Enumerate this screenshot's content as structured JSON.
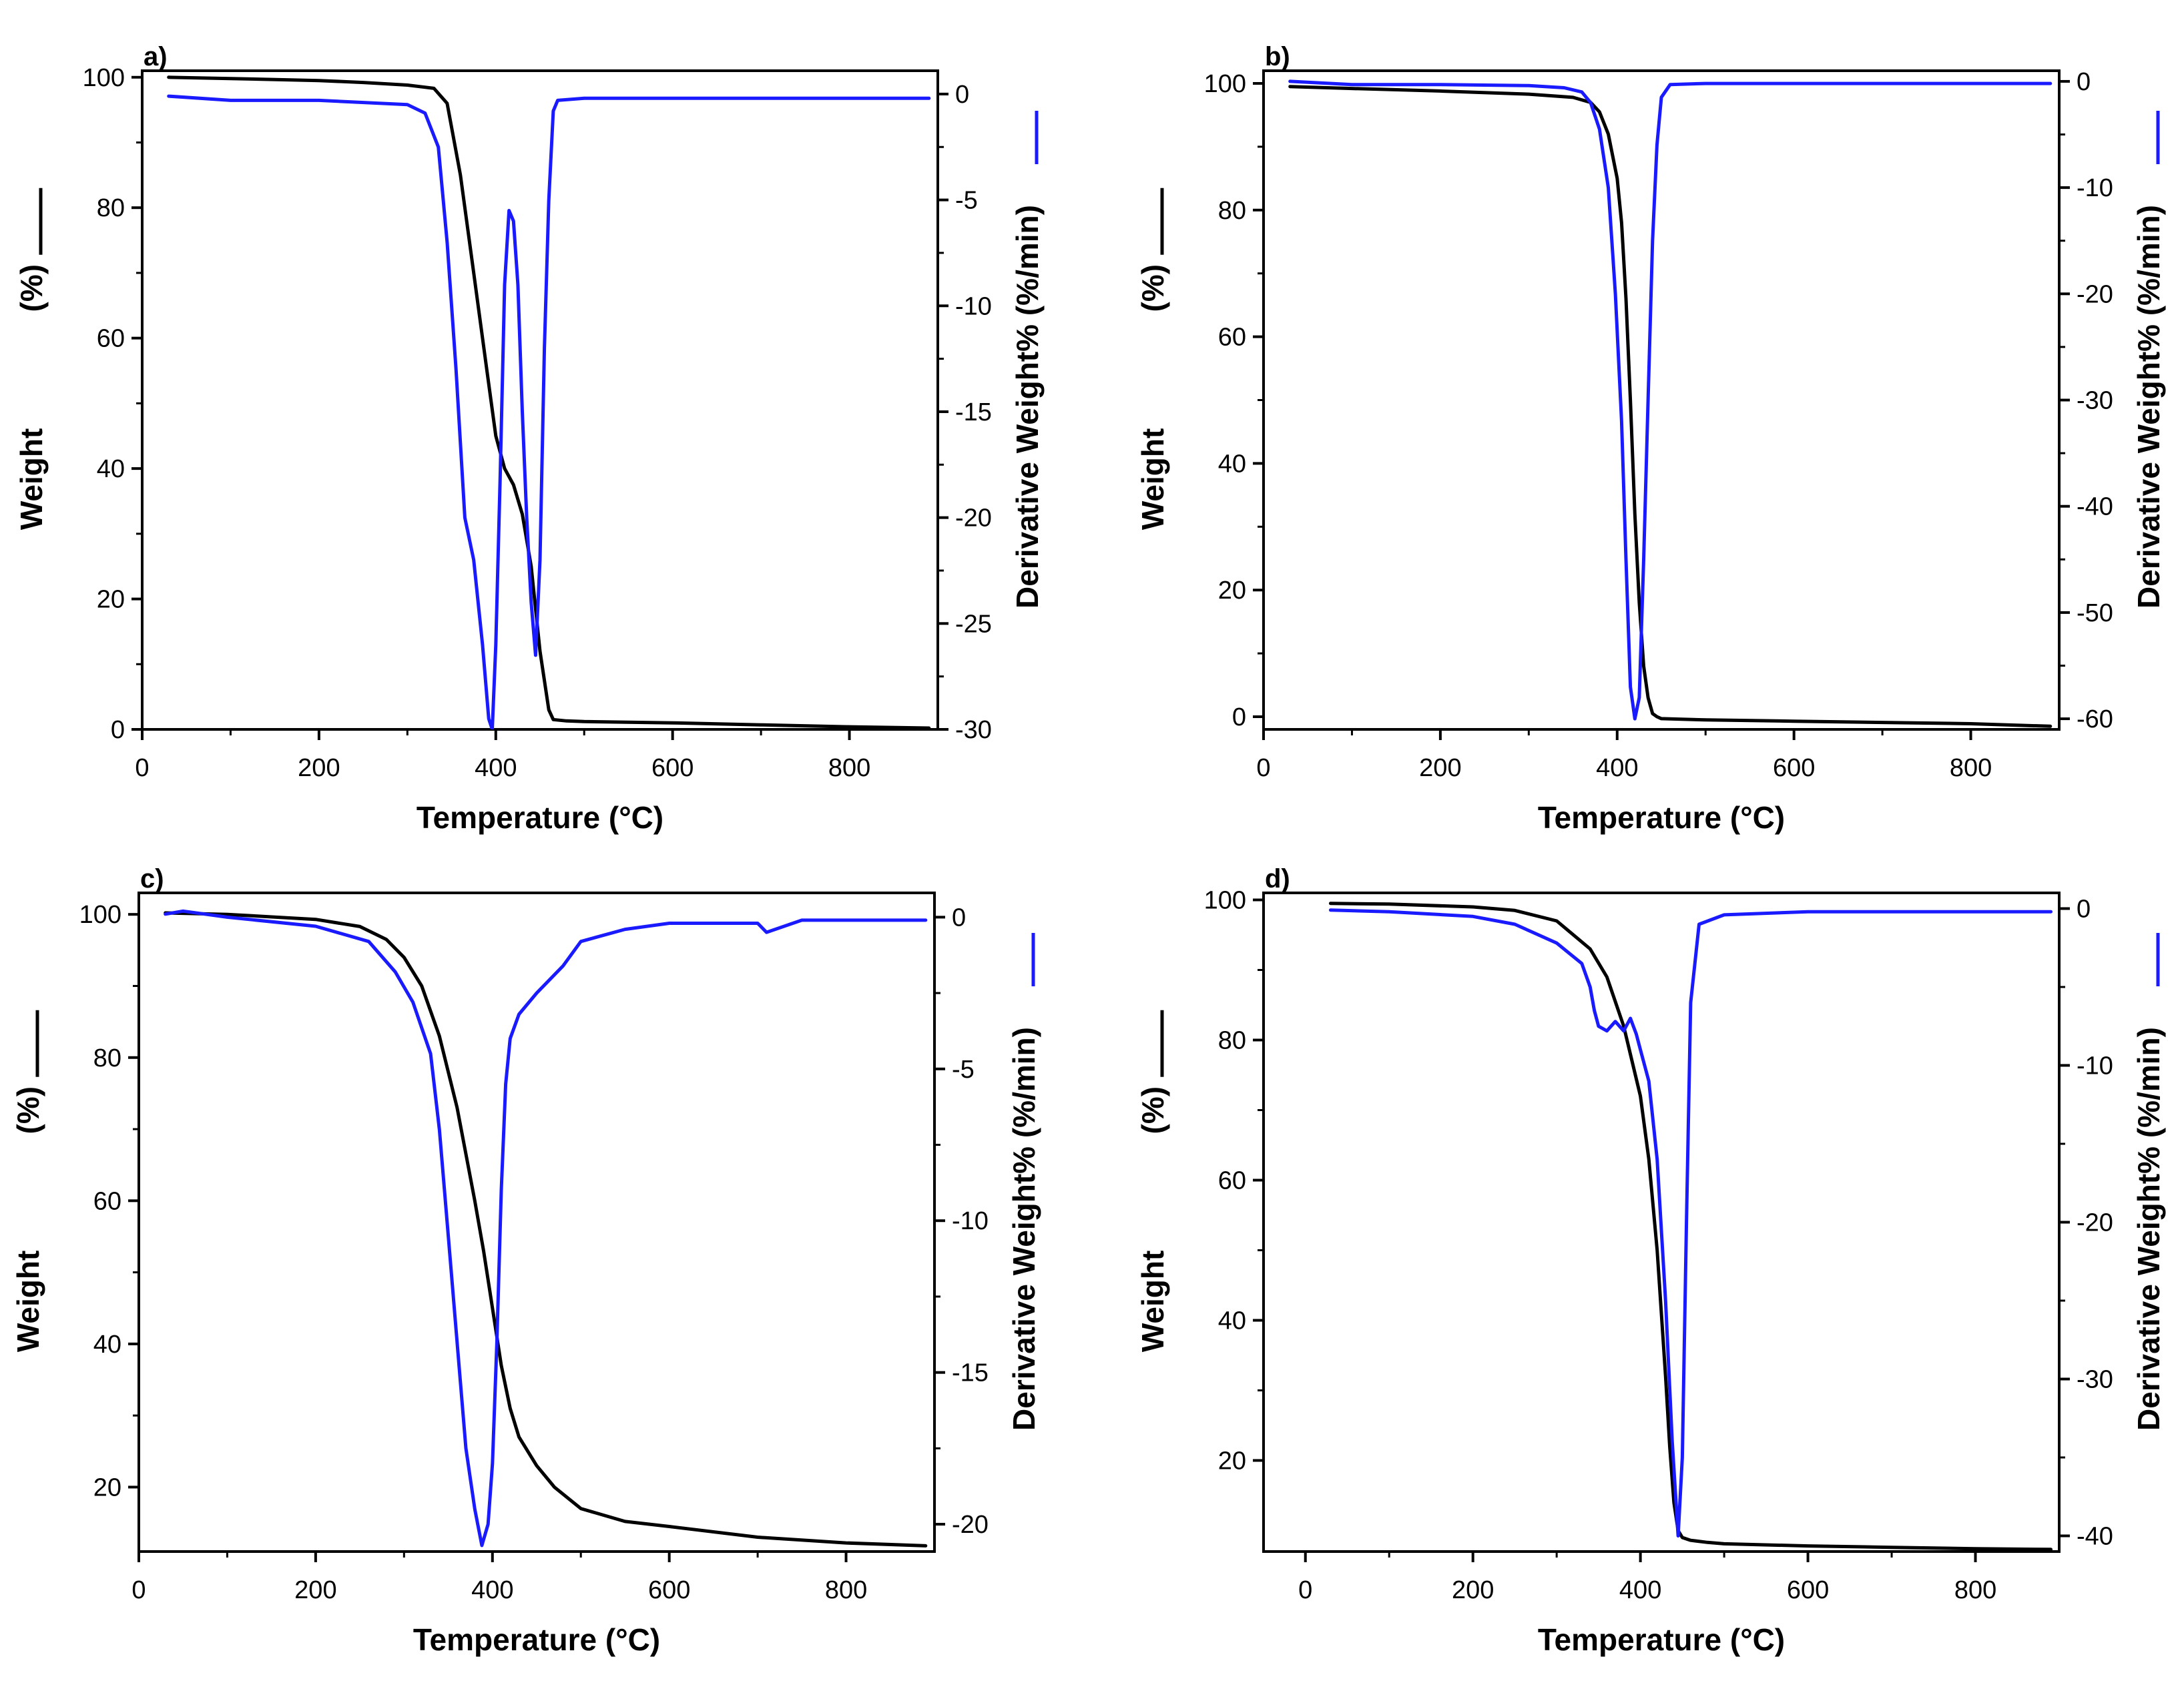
{
  "figure": {
    "colors": {
      "weight": "#000000",
      "derivative": "#1a1aff",
      "axis": "#000000"
    }
  },
  "chart_data": [
    {
      "panel_label": "a)",
      "type": "line",
      "xlabel": "Temperature (°C)",
      "ylabel_left_parts": [
        "Weight",
        "(%)"
      ],
      "ylabel_right": "Derivative Weight% (%/min)",
      "xlim": [
        0,
        900
      ],
      "ylim_left": [
        0,
        101
      ],
      "ylim_right": [
        -30,
        1.1
      ],
      "xticks": [
        0,
        200,
        400,
        600,
        800
      ],
      "xtick_labels": [
        "0",
        "200",
        "400",
        "600",
        "800"
      ],
      "yticks_left": [
        0,
        20,
        40,
        60,
        80,
        100
      ],
      "ytick_labels_left": [
        "0",
        "20",
        "40",
        "60",
        "80",
        "100"
      ],
      "yticks_right": [
        0,
        -5,
        -10,
        -15,
        -20,
        -25,
        -30
      ],
      "ytick_labels_right": [
        "0",
        "-5",
        "-10",
        "-15",
        "-20",
        "-25",
        "-30"
      ],
      "series": [
        {
          "name": "Weight",
          "axis": "left",
          "color": "#000000",
          "x": [
            30,
            100,
            200,
            250,
            300,
            330,
            345,
            360,
            375,
            390,
            400,
            410,
            420,
            430,
            440,
            450,
            460,
            465,
            480,
            500,
            600,
            700,
            800,
            890
          ],
          "y": [
            100,
            99.8,
            99.5,
            99.2,
            98.8,
            98.3,
            96,
            85,
            70,
            55,
            45,
            40,
            37.5,
            33,
            25,
            12,
            3,
            1.5,
            1.3,
            1.2,
            1.0,
            0.7,
            0.4,
            0.2
          ]
        },
        {
          "name": "Derivative Weight%",
          "axis": "right",
          "color": "#1a1aff",
          "x": [
            30,
            100,
            200,
            300,
            320,
            335,
            345,
            355,
            365,
            375,
            385,
            392,
            396,
            400,
            405,
            410,
            415,
            420,
            425,
            430,
            435,
            440,
            445,
            450,
            455,
            460,
            465,
            470,
            500,
            600,
            700,
            800,
            890
          ],
          "y": [
            -0.1,
            -0.3,
            -0.3,
            -0.5,
            -0.9,
            -2.5,
            -7,
            -13,
            -20,
            -22,
            -26,
            -29.5,
            -30,
            -26,
            -18,
            -9,
            -5.5,
            -6,
            -9,
            -15,
            -20,
            -24,
            -26.5,
            -22,
            -12,
            -5,
            -0.8,
            -0.3,
            -0.2,
            -0.2,
            -0.2,
            -0.2,
            -0.2
          ]
        }
      ]
    },
    {
      "panel_label": "b)",
      "type": "line",
      "xlabel": "Temperature (°C)",
      "ylabel_left_parts": [
        "Weight",
        "(%)"
      ],
      "ylabel_right": "Derivative Weight% (%/min)",
      "xlim": [
        0,
        900
      ],
      "ylim_left": [
        -2,
        102
      ],
      "ylim_right": [
        -61,
        1
      ],
      "xticks": [
        0,
        200,
        400,
        600,
        800
      ],
      "xtick_labels": [
        "0",
        "200",
        "400",
        "600",
        "800"
      ],
      "yticks_left": [
        0,
        20,
        40,
        60,
        80,
        100
      ],
      "ytick_labels_left": [
        "0",
        "20",
        "40",
        "60",
        "80",
        "100"
      ],
      "yticks_right": [
        0,
        -10,
        -20,
        -30,
        -40,
        -50,
        -60
      ],
      "ytick_labels_right": [
        "0",
        "-10",
        "-20",
        "-30",
        "-40",
        "-50",
        "-60"
      ],
      "series": [
        {
          "name": "Weight",
          "axis": "left",
          "color": "#000000",
          "x": [
            30,
            100,
            200,
            300,
            350,
            370,
            380,
            390,
            400,
            405,
            410,
            415,
            420,
            425,
            430,
            435,
            440,
            445,
            450,
            500,
            600,
            700,
            800,
            890
          ],
          "y": [
            99.5,
            99.2,
            98.8,
            98.3,
            97.8,
            97,
            95.5,
            92,
            85,
            78,
            66,
            50,
            32,
            18,
            8,
            3,
            0.5,
            0,
            -0.3,
            -0.5,
            -0.7,
            -0.9,
            -1.1,
            -1.5
          ]
        },
        {
          "name": "Derivative Weight%",
          "axis": "right",
          "color": "#1a1aff",
          "x": [
            30,
            100,
            200,
            300,
            340,
            360,
            370,
            380,
            390,
            398,
            405,
            410,
            415,
            420,
            425,
            430,
            435,
            440,
            445,
            450,
            460,
            500,
            600,
            700,
            800,
            890
          ],
          "y": [
            0,
            -0.3,
            -0.3,
            -0.4,
            -0.6,
            -1.0,
            -2.0,
            -4.5,
            -10,
            -20,
            -32,
            -45,
            -57,
            -60,
            -58,
            -45,
            -30,
            -15,
            -6,
            -1.5,
            -0.3,
            -0.2,
            -0.2,
            -0.2,
            -0.2,
            -0.2
          ]
        }
      ]
    },
    {
      "panel_label": "c)",
      "type": "line",
      "xlabel": "Temperature (°C)",
      "ylabel_left_parts": [
        "Weight",
        "(%)"
      ],
      "ylabel_right": "Derivative Weight% (%/min)",
      "xlim": [
        0,
        900
      ],
      "ylim_left": [
        11,
        103
      ],
      "ylim_right": [
        -20.9,
        0.8
      ],
      "xticks": [
        0,
        200,
        400,
        600,
        800
      ],
      "xtick_labels": [
        "0",
        "200",
        "400",
        "600",
        "800"
      ],
      "yticks_left": [
        20,
        40,
        60,
        80,
        100
      ],
      "ytick_labels_left": [
        "20",
        "40",
        "60",
        "80",
        "100"
      ],
      "yticks_right": [
        0,
        -5,
        -10,
        -15,
        -20
      ],
      "ytick_labels_right": [
        "0",
        "-5",
        "-10",
        "-15",
        "-20"
      ],
      "series": [
        {
          "name": "Weight",
          "axis": "left",
          "color": "#000000",
          "x": [
            30,
            100,
            200,
            250,
            280,
            300,
            320,
            340,
            360,
            380,
            390,
            400,
            410,
            420,
            430,
            450,
            470,
            500,
            550,
            600,
            700,
            800,
            890
          ],
          "y": [
            100.2,
            100,
            99.3,
            98.3,
            96.5,
            94,
            90,
            83,
            73,
            60,
            53,
            45,
            37,
            31,
            27,
            23,
            20,
            17,
            15.2,
            14.5,
            13,
            12.2,
            11.8
          ]
        },
        {
          "name": "Derivative Weight%",
          "axis": "right",
          "color": "#1a1aff",
          "x": [
            30,
            50,
            100,
            200,
            260,
            290,
            310,
            330,
            340,
            350,
            360,
            370,
            380,
            388,
            395,
            400,
            405,
            410,
            415,
            420,
            430,
            450,
            480,
            500,
            550,
            600,
            650,
            700,
            710,
            750,
            800,
            890
          ],
          "y": [
            0.1,
            0.2,
            0.0,
            -0.3,
            -0.8,
            -1.8,
            -2.8,
            -4.5,
            -7,
            -10.5,
            -14,
            -17.5,
            -19.5,
            -20.7,
            -20,
            -18,
            -14,
            -9,
            -5.5,
            -4,
            -3.2,
            -2.5,
            -1.6,
            -0.8,
            -0.4,
            -0.2,
            -0.2,
            -0.2,
            -0.5,
            -0.1,
            -0.1,
            -0.1
          ]
        }
      ]
    },
    {
      "panel_label": "d)",
      "type": "line",
      "xlabel": "Temperature (°C)",
      "ylabel_left_parts": [
        "Weight",
        "(%)"
      ],
      "ylabel_right": "Derivative Weight% (%/min)",
      "xlim": [
        -50,
        900
      ],
      "ylim_left": [
        7,
        101
      ],
      "ylim_right": [
        -41,
        1
      ],
      "xticks": [
        0,
        200,
        400,
        600,
        800
      ],
      "xtick_labels": [
        "0",
        "200",
        "400",
        "600",
        "800"
      ],
      "yticks_left": [
        20,
        40,
        60,
        80,
        100
      ],
      "ytick_labels_left": [
        "20",
        "40",
        "60",
        "80",
        "100"
      ],
      "yticks_right": [
        0,
        -10,
        -20,
        -30,
        -40
      ],
      "ytick_labels_right": [
        "0",
        "-10",
        "-20",
        "-30",
        "-40"
      ],
      "series": [
        {
          "name": "Weight",
          "axis": "left",
          "color": "#000000",
          "x": [
            30,
            100,
            200,
            250,
            300,
            340,
            360,
            380,
            400,
            410,
            420,
            430,
            435,
            440,
            445,
            450,
            460,
            480,
            500,
            600,
            700,
            800,
            890
          ],
          "y": [
            99.5,
            99.4,
            99,
            98.5,
            97,
            93,
            89,
            82,
            72,
            63,
            50,
            32,
            22,
            14,
            10,
            9,
            8.6,
            8.3,
            8.1,
            7.8,
            7.6,
            7.4,
            7.3
          ]
        },
        {
          "name": "Derivative Weight%",
          "axis": "right",
          "color": "#1a1aff",
          "x": [
            30,
            100,
            200,
            250,
            300,
            330,
            340,
            345,
            350,
            360,
            370,
            380,
            388,
            395,
            400,
            410,
            420,
            430,
            438,
            445,
            450,
            455,
            460,
            470,
            500,
            600,
            700,
            800,
            890
          ],
          "y": [
            -0.1,
            -0.2,
            -0.5,
            -1.0,
            -2.2,
            -3.5,
            -5,
            -6.5,
            -7.5,
            -7.8,
            -7.2,
            -7.8,
            -7.0,
            -8,
            -9,
            -11,
            -16,
            -25,
            -34,
            -40,
            -35,
            -20,
            -6,
            -1.0,
            -0.4,
            -0.2,
            -0.2,
            -0.2,
            -0.2
          ]
        }
      ]
    }
  ]
}
